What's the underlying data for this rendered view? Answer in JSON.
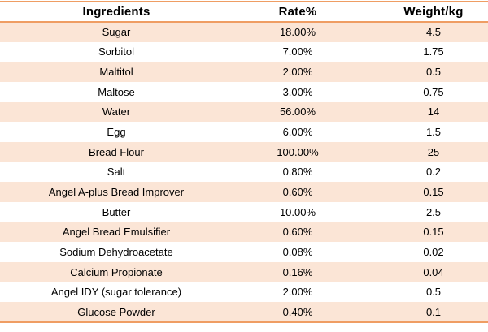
{
  "table": {
    "columns": [
      {
        "label": "Ingredients"
      },
      {
        "label": "Rate%"
      },
      {
        "label": "Weight/kg"
      }
    ],
    "rows": [
      {
        "ingredient": "Sugar",
        "rate": "18.00%",
        "weight": "4.5"
      },
      {
        "ingredient": "Sorbitol",
        "rate": "7.00%",
        "weight": "1.75"
      },
      {
        "ingredient": "Maltitol",
        "rate": "2.00%",
        "weight": "0.5"
      },
      {
        "ingredient": "Maltose",
        "rate": "3.00%",
        "weight": "0.75"
      },
      {
        "ingredient": "Water",
        "rate": "56.00%",
        "weight": "14"
      },
      {
        "ingredient": "Egg",
        "rate": "6.00%",
        "weight": "1.5"
      },
      {
        "ingredient": "Bread Flour",
        "rate": "100.00%",
        "weight": "25"
      },
      {
        "ingredient": "Salt",
        "rate": "0.80%",
        "weight": "0.2"
      },
      {
        "ingredient": "Angel A-plus Bread Improver",
        "rate": "0.60%",
        "weight": "0.15"
      },
      {
        "ingredient": "Butter",
        "rate": "10.00%",
        "weight": "2.5"
      },
      {
        "ingredient": "Angel Bread Emulsifier",
        "rate": "0.60%",
        "weight": "0.15"
      },
      {
        "ingredient": "Sodium Dehydroacetate",
        "rate": "0.08%",
        "weight": "0.02"
      },
      {
        "ingredient": "Calcium Propionate",
        "rate": "0.16%",
        "weight": "0.04"
      },
      {
        "ingredient": "Angel IDY (sugar tolerance)",
        "rate": "2.00%",
        "weight": "0.5"
      },
      {
        "ingredient": "Glucose Powder",
        "rate": "0.40%",
        "weight": "0.1"
      }
    ],
    "colors": {
      "band_fill": "#FBE5D6",
      "border": "#EF9D63",
      "text": "#000000",
      "background": "#FFFFFF"
    }
  }
}
